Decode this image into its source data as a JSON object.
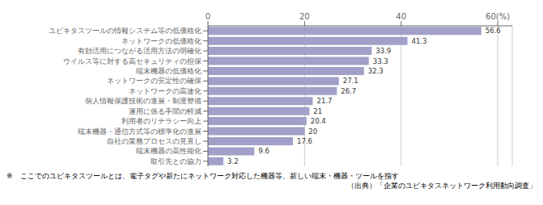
{
  "chart_data": {
    "type": "bar",
    "orientation": "horizontal",
    "categories": [
      "取引先との協力",
      "端末機器の高性能化",
      "自社の業務プロセスの見直し",
      "端末機器・通信方式等の標準化の進展",
      "利用者のリテラシー向上",
      "運用に係る手間の軽減",
      "個人情報保護技術の進展・制度整備",
      "ネットワークの高速化",
      "ネットワークの安定性の確保",
      "端末機器の低価格化",
      "ウイルス等に対する高セキュリティの担保",
      "有効活用につながる活用方法の明確化",
      "ネットワークの低価格化",
      "ユビキタスツールの情報システム等の低価格化"
    ],
    "values": [
      3.2,
      9.6,
      17.6,
      20.0,
      20.4,
      21.0,
      21.7,
      26.7,
      27.1,
      32.3,
      33.3,
      33.9,
      41.3,
      56.6
    ],
    "color": "#a0a0c8",
    "xlim": [
      0,
      63
    ],
    "xticks": [
      0,
      20,
      40,
      {
        "value": 60,
        "label": "60(%)"
      }
    ],
    "grid": true,
    "data_labels": true,
    "annotations": [
      "※　ここでのユビキタスツールとは、電子タグや新たにネットワーク対応した機器等、新しい端末・機器・ツールを指す",
      "（出典）「企業のユビキタスネットワーク利用動向調査」"
    ]
  }
}
